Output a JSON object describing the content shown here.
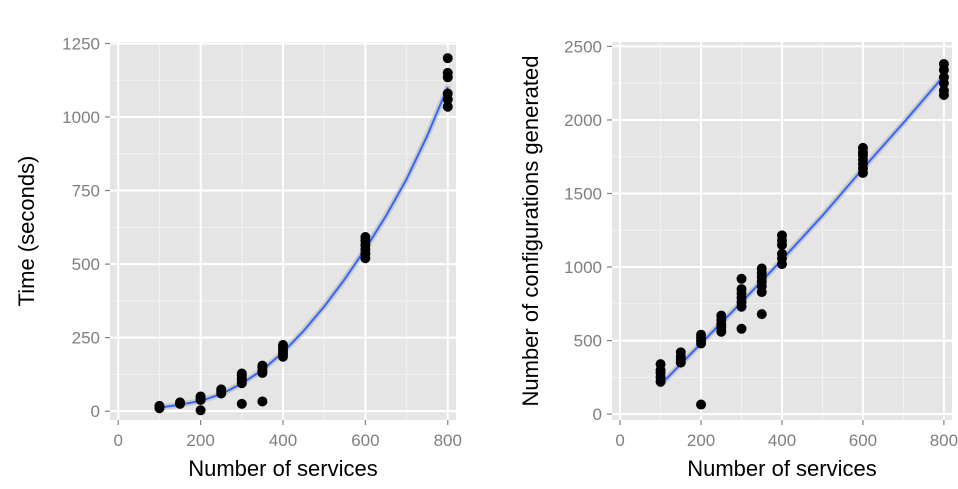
{
  "chart_data": [
    {
      "type": "scatter",
      "title": "",
      "xlabel": "Number of services",
      "ylabel": "Time (seconds)",
      "xlim": [
        -20,
        820
      ],
      "ylim": [
        -30,
        1255
      ],
      "xticks": [
        0,
        200,
        400,
        600,
        800
      ],
      "yticks": [
        0,
        250,
        500,
        750,
        1000,
        1250
      ],
      "grid": true,
      "legend": "none",
      "colors": {
        "panel": "#e5e5e5",
        "grid_major": "#ffffff",
        "grid_minor": "#f2f2f2",
        "points": "#000000",
        "fit": "#3366ff",
        "ribbon": "#999999"
      },
      "series": [
        {
          "type": "points",
          "points": [
            [
              100,
              10
            ],
            [
              100,
              14
            ],
            [
              100,
              18
            ],
            [
              150,
              25
            ],
            [
              150,
              30
            ],
            [
              200,
              3
            ],
            [
              200,
              38
            ],
            [
              200,
              45
            ],
            [
              200,
              50
            ],
            [
              250,
              60
            ],
            [
              250,
              68
            ],
            [
              250,
              74
            ],
            [
              300,
              25
            ],
            [
              300,
              95
            ],
            [
              300,
              105
            ],
            [
              300,
              112
            ],
            [
              300,
              122
            ],
            [
              300,
              128
            ],
            [
              350,
              33
            ],
            [
              350,
              130
            ],
            [
              350,
              138
            ],
            [
              350,
              148
            ],
            [
              350,
              155
            ],
            [
              400,
              185
            ],
            [
              400,
              195
            ],
            [
              400,
              205
            ],
            [
              400,
              215
            ],
            [
              400,
              225
            ],
            [
              600,
              520
            ],
            [
              600,
              535
            ],
            [
              600,
              550
            ],
            [
              600,
              565
            ],
            [
              600,
              580
            ],
            [
              600,
              592
            ],
            [
              800,
              1035
            ],
            [
              800,
              1060
            ],
            [
              800,
              1080
            ],
            [
              800,
              1135
            ],
            [
              800,
              1150
            ],
            [
              800,
              1200
            ]
          ]
        },
        {
          "type": "smooth",
          "points": [
            [
              100,
              12
            ],
            [
              150,
              22
            ],
            [
              200,
              35
            ],
            [
              250,
              58
            ],
            [
              300,
              94
            ],
            [
              350,
              140
            ],
            [
              400,
              200
            ],
            [
              450,
              273
            ],
            [
              500,
              356
            ],
            [
              550,
              449
            ],
            [
              600,
              552
            ],
            [
              650,
              664
            ],
            [
              700,
              789
            ],
            [
              750,
              936
            ],
            [
              800,
              1102
            ]
          ]
        }
      ]
    },
    {
      "type": "scatter",
      "title": "",
      "xlabel": "Number of services",
      "ylabel": "Number of configurations generated",
      "xlim": [
        -20,
        820
      ],
      "ylim": [
        -40,
        2530
      ],
      "xticks": [
        0,
        200,
        400,
        600,
        800
      ],
      "yticks": [
        0,
        500,
        1000,
        1500,
        2000,
        2500
      ],
      "grid": true,
      "legend": "none",
      "colors": {
        "panel": "#e5e5e5",
        "grid_major": "#ffffff",
        "grid_minor": "#f2f2f2",
        "points": "#000000",
        "fit": "#3366ff",
        "ribbon": "#999999"
      },
      "series": [
        {
          "type": "points",
          "points": [
            [
              100,
              220
            ],
            [
              100,
              250
            ],
            [
              100,
              280
            ],
            [
              100,
              300
            ],
            [
              100,
              340
            ],
            [
              150,
              350
            ],
            [
              150,
              370
            ],
            [
              150,
              390
            ],
            [
              150,
              420
            ],
            [
              200,
              65
            ],
            [
              200,
              480
            ],
            [
              200,
              500
            ],
            [
              200,
              520
            ],
            [
              200,
              540
            ],
            [
              250,
              560
            ],
            [
              250,
              590
            ],
            [
              250,
              610
            ],
            [
              250,
              640
            ],
            [
              250,
              670
            ],
            [
              300,
              580
            ],
            [
              300,
              730
            ],
            [
              300,
              760
            ],
            [
              300,
              790
            ],
            [
              300,
              820
            ],
            [
              300,
              850
            ],
            [
              300,
              920
            ],
            [
              350,
              680
            ],
            [
              350,
              830
            ],
            [
              350,
              870
            ],
            [
              350,
              900
            ],
            [
              350,
              930
            ],
            [
              350,
              960
            ],
            [
              350,
              990
            ],
            [
              400,
              1020
            ],
            [
              400,
              1060
            ],
            [
              400,
              1090
            ],
            [
              400,
              1150
            ],
            [
              400,
              1180
            ],
            [
              400,
              1215
            ],
            [
              600,
              1640
            ],
            [
              600,
              1670
            ],
            [
              600,
              1700
            ],
            [
              600,
              1730
            ],
            [
              600,
              1760
            ],
            [
              600,
              1780
            ],
            [
              600,
              1810
            ],
            [
              800,
              2170
            ],
            [
              800,
              2200
            ],
            [
              800,
              2250
            ],
            [
              800,
              2290
            ],
            [
              800,
              2340
            ],
            [
              800,
              2380
            ]
          ]
        },
        {
          "type": "smooth",
          "points": [
            [
              100,
              200
            ],
            [
              200,
              480
            ],
            [
              300,
              760
            ],
            [
              400,
              1050
            ],
            [
              500,
              1350
            ],
            [
              600,
              1670
            ],
            [
              700,
              1980
            ],
            [
              800,
              2300
            ]
          ]
        }
      ]
    }
  ]
}
